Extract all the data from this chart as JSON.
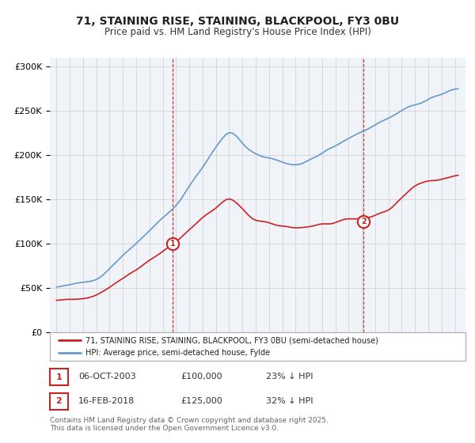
{
  "title": "71, STAINING RISE, STAINING, BLACKPOOL, FY3 0BU",
  "subtitle": "Price paid vs. HM Land Registry's House Price Index (HPI)",
  "legend_line1": "71, STAINING RISE, STAINING, BLACKPOOL, FY3 0BU (semi-detached house)",
  "legend_line2": "HPI: Average price, semi-detached house, Fylde",
  "sale1_date": "06-OCT-2003",
  "sale1_price": "£100,000",
  "sale1_hpi": "23% ↓ HPI",
  "sale2_date": "16-FEB-2018",
  "sale2_price": "£125,000",
  "sale2_hpi": "32% ↓ HPI",
  "footnote": "Contains HM Land Registry data © Crown copyright and database right 2025.\nThis data is licensed under the Open Government Licence v3.0.",
  "hpi_color": "#6699cc",
  "price_color": "#cc2222",
  "marker1_date_num": 2003.76,
  "marker2_date_num": 2018.12,
  "ylim": [
    0,
    310000
  ],
  "xlim_start": 1994.5,
  "xlim_end": 2025.5,
  "background_color": "#f0f4f8",
  "plot_bg": "#ffffff"
}
